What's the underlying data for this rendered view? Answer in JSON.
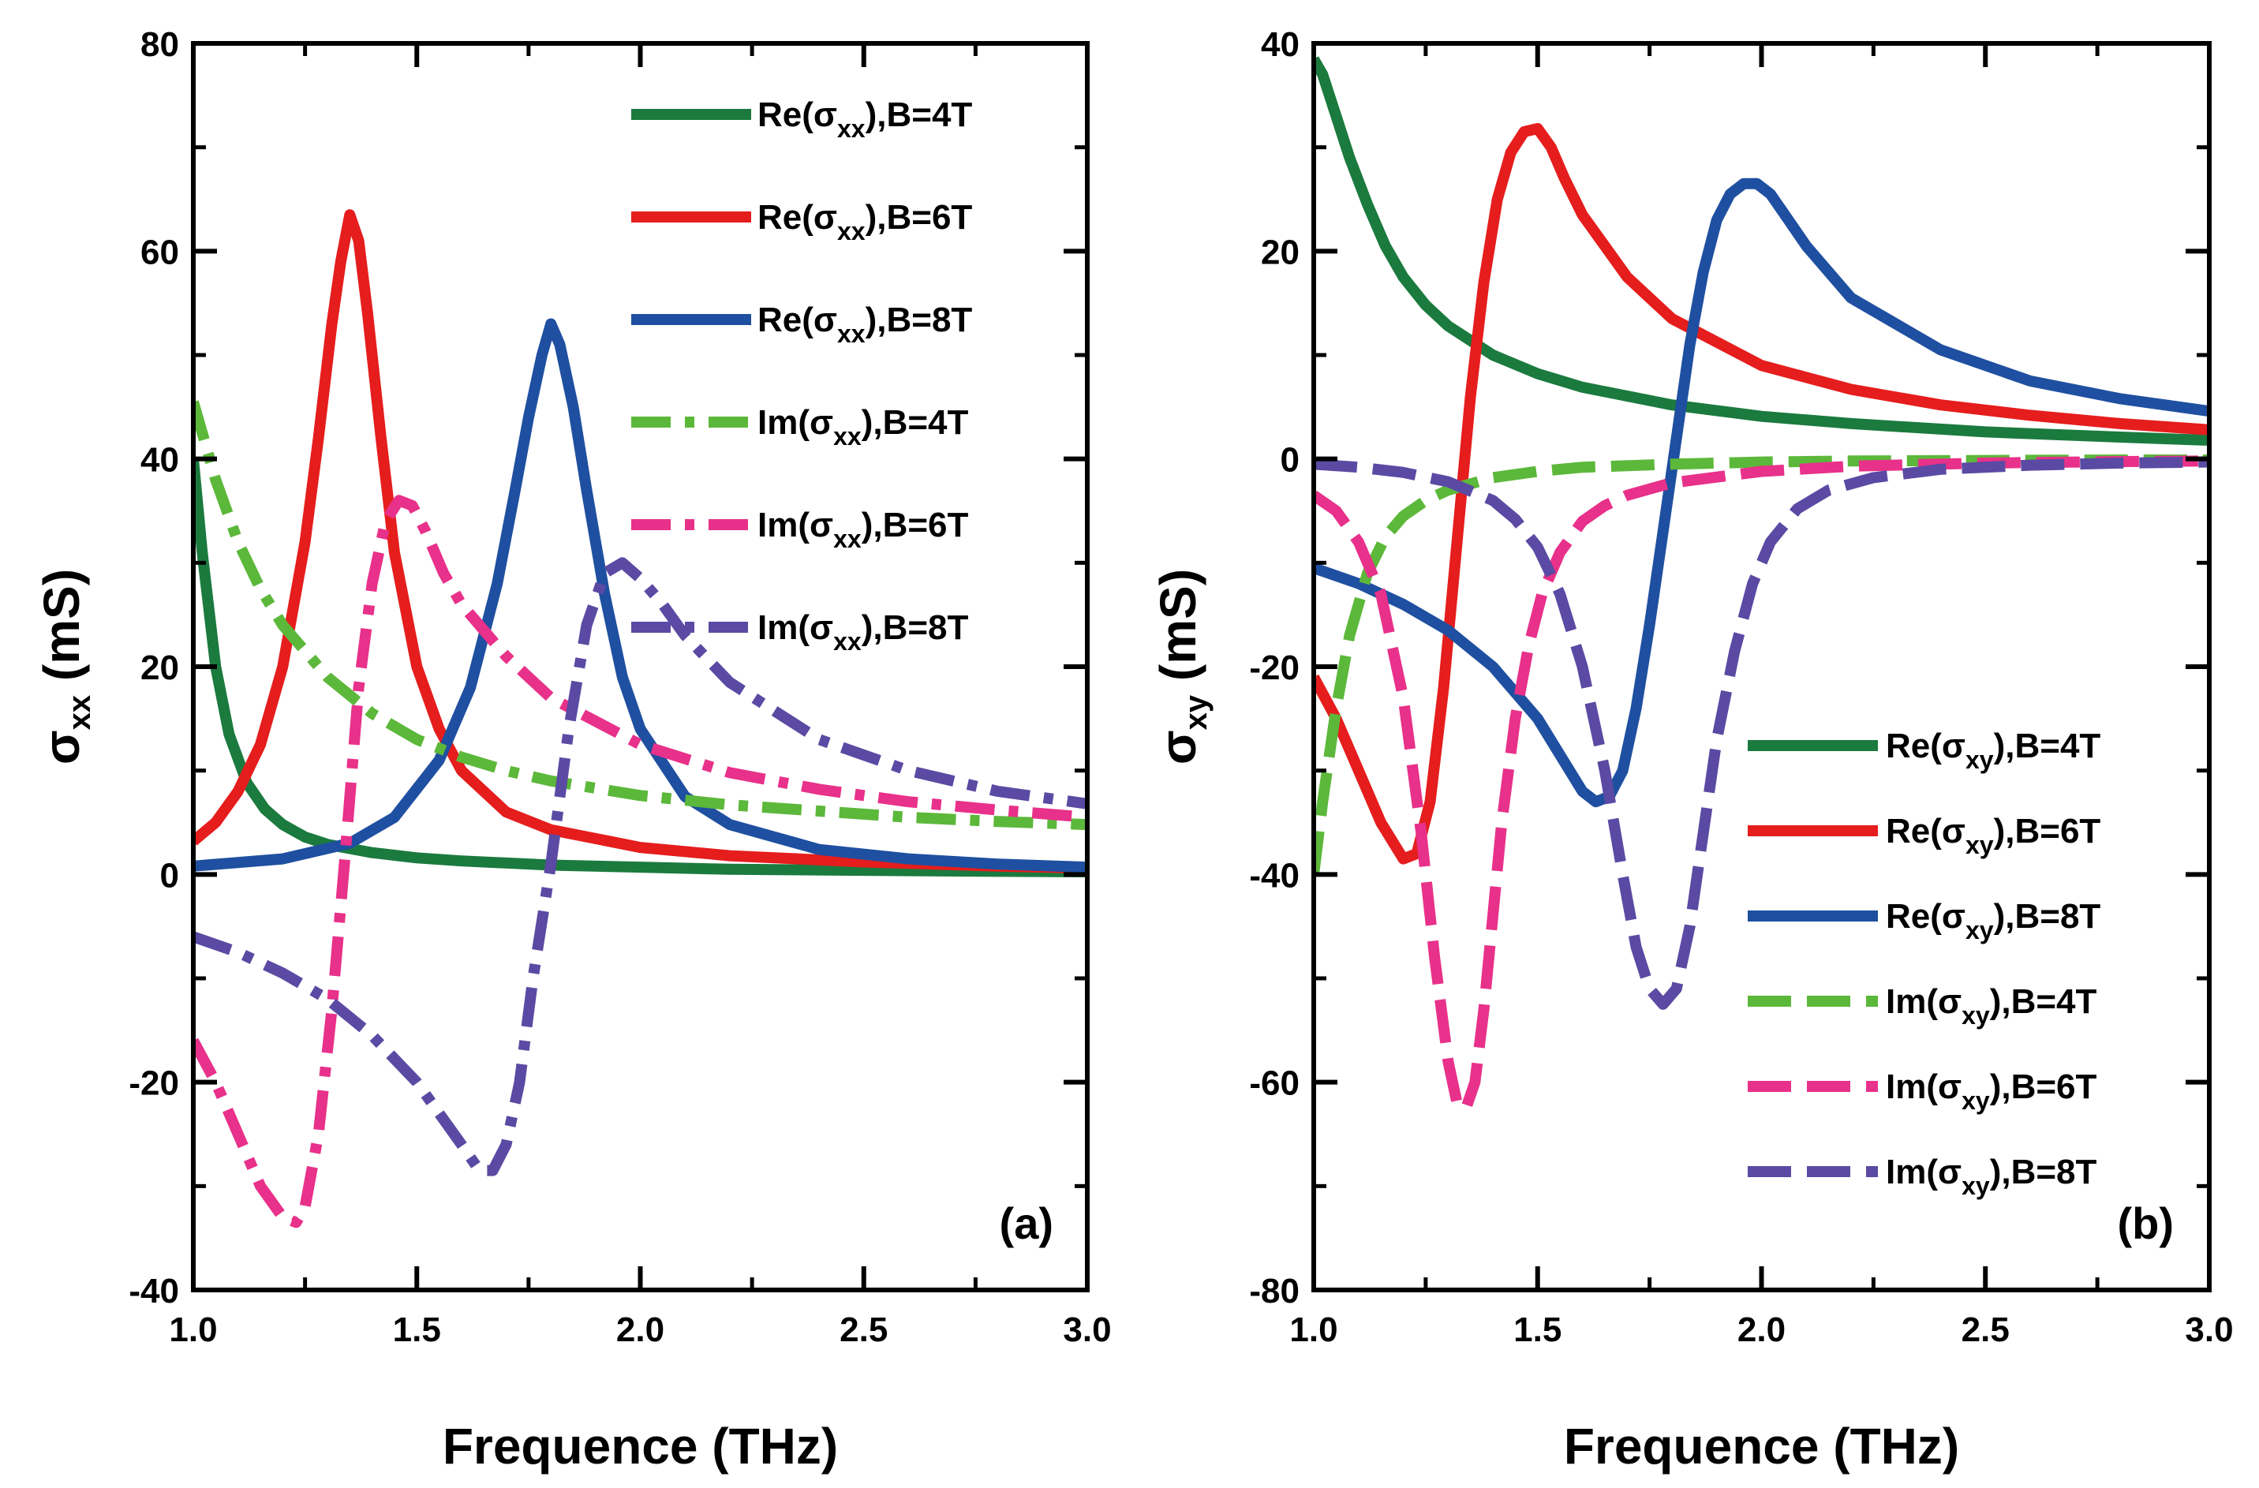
{
  "chart_data": [
    {
      "type": "line",
      "panel_label": "(a)",
      "xlabel": "Frequence (THz)",
      "ylabel_main": "σ",
      "ylabel_sub": "xx",
      "ylabel_unit": "(mS)",
      "xlim": [
        1.0,
        3.0
      ],
      "ylim": [
        -40,
        80
      ],
      "xticks": [
        1.0,
        1.5,
        2.0,
        2.5,
        3.0
      ],
      "xtick_labels": [
        "1.0",
        "1.5",
        "2.0",
        "2.5",
        "3.0"
      ],
      "yticks": [
        -40,
        -20,
        0,
        20,
        40,
        60,
        80
      ],
      "ytick_labels": [
        "-40",
        "-20",
        "0",
        "20",
        "40",
        "60",
        "80"
      ],
      "legend_position": "top-right",
      "series": [
        {
          "name": "Re(σxx),B=4T",
          "legend_pre": "Re(σ",
          "legend_sub": "xx",
          "legend_post": "),B=4T",
          "color": "#1b7a3e",
          "dash": "solid",
          "x": [
            1.0,
            1.02,
            1.05,
            1.08,
            1.12,
            1.16,
            1.2,
            1.25,
            1.3,
            1.4,
            1.5,
            1.6,
            1.8,
            2.0,
            2.2,
            2.5,
            2.8,
            3.0
          ],
          "y": [
            40,
            31,
            20,
            13.5,
            8.8,
            6.3,
            4.8,
            3.6,
            2.9,
            2.1,
            1.6,
            1.3,
            0.9,
            0.7,
            0.5,
            0.4,
            0.3,
            0.25
          ]
        },
        {
          "name": "Re(σxx),B=6T",
          "legend_pre": "Re(σ",
          "legend_sub": "xx",
          "legend_post": "),B=6T",
          "color": "#e51d1d",
          "dash": "solid",
          "x": [
            1.0,
            1.05,
            1.1,
            1.15,
            1.2,
            1.25,
            1.28,
            1.31,
            1.33,
            1.35,
            1.37,
            1.39,
            1.42,
            1.45,
            1.5,
            1.55,
            1.6,
            1.7,
            1.8,
            2.0,
            2.2,
            2.5,
            2.8,
            3.0
          ],
          "y": [
            3.2,
            5,
            8,
            12.5,
            20,
            32,
            42,
            53,
            59,
            63.5,
            61,
            54,
            42,
            31,
            20,
            14,
            10,
            6,
            4.3,
            2.6,
            1.8,
            1.2,
            0.8,
            0.6
          ]
        },
        {
          "name": "Re(σxx),B=8T",
          "legend_pre": "Re(σ",
          "legend_sub": "xx",
          "legend_post": "),B=8T",
          "color": "#1f4fa0",
          "dash": "solid",
          "x": [
            1.0,
            1.2,
            1.35,
            1.45,
            1.55,
            1.62,
            1.68,
            1.72,
            1.75,
            1.78,
            1.8,
            1.82,
            1.85,
            1.88,
            1.92,
            1.96,
            2.0,
            2.1,
            2.2,
            2.4,
            2.6,
            2.8,
            3.0
          ],
          "y": [
            0.8,
            1.5,
            3,
            5.5,
            11,
            18,
            28,
            37,
            44,
            50,
            53,
            51,
            45,
            37,
            27,
            19,
            14,
            7.5,
            4.8,
            2.4,
            1.5,
            1,
            0.7
          ]
        },
        {
          "name": "Im(σxx),B=4T",
          "legend_pre": "Im(σ",
          "legend_sub": "xx",
          "legend_post": "),B=4T",
          "color": "#5cb83a",
          "dash": "dashdot",
          "x": [
            1.0,
            1.05,
            1.1,
            1.15,
            1.2,
            1.3,
            1.4,
            1.5,
            1.6,
            1.7,
            1.8,
            2.0,
            2.2,
            2.4,
            2.6,
            2.8,
            3.0
          ],
          "y": [
            45.5,
            38,
            32,
            27.5,
            24,
            19,
            15.5,
            13,
            11.3,
            10,
            9,
            7.6,
            6.7,
            6.1,
            5.5,
            5.1,
            4.8
          ]
        },
        {
          "name": "Im(σxx),B=6T",
          "legend_pre": "Im(σ",
          "legend_sub": "xx",
          "legend_post": "),B=6T",
          "color": "#e8318a",
          "dash": "dashdot",
          "x": [
            1.0,
            1.05,
            1.1,
            1.15,
            1.2,
            1.23,
            1.25,
            1.28,
            1.31,
            1.34,
            1.37,
            1.4,
            1.43,
            1.46,
            1.49,
            1.52,
            1.56,
            1.6,
            1.7,
            1.8,
            2.0,
            2.2,
            2.4,
            2.6,
            2.8,
            3.0
          ],
          "y": [
            -16,
            -20,
            -25,
            -30,
            -33,
            -33.5,
            -32,
            -25,
            -13,
            2,
            18,
            28,
            34,
            36,
            35.5,
            33,
            29,
            26,
            21,
            17,
            12.5,
            9.8,
            8.2,
            7,
            6.2,
            5.5
          ]
        },
        {
          "name": "Im(σxx),B=8T",
          "legend_pre": "Im(σ",
          "legend_sub": "xx",
          "legend_post": "),B=8T",
          "color": "#5b4aa3",
          "dash": "dashdot",
          "x": [
            1.0,
            1.1,
            1.2,
            1.3,
            1.4,
            1.5,
            1.55,
            1.6,
            1.64,
            1.67,
            1.7,
            1.73,
            1.76,
            1.8,
            1.84,
            1.88,
            1.92,
            1.96,
            2.0,
            2.05,
            2.1,
            2.2,
            2.4,
            2.6,
            2.8,
            3.0
          ],
          "y": [
            -6,
            -7.5,
            -9.5,
            -12,
            -15.5,
            -20,
            -23,
            -26,
            -28.5,
            -28.5,
            -26,
            -20,
            -10,
            1,
            14,
            24,
            29,
            30,
            28.5,
            26,
            23,
            18.5,
            13,
            10,
            8,
            6.8
          ]
        }
      ]
    },
    {
      "type": "line",
      "panel_label": "(b)",
      "xlabel": "Frequence (THz)",
      "ylabel_main": "σ",
      "ylabel_sub": "xy",
      "ylabel_unit": "(mS)",
      "xlim": [
        1.0,
        3.0
      ],
      "ylim": [
        -80,
        40
      ],
      "xticks": [
        1.0,
        1.5,
        2.0,
        2.5,
        3.0
      ],
      "xtick_labels": [
        "1.0",
        "1.5",
        "2.0",
        "2.5",
        "3.0"
      ],
      "yticks": [
        -80,
        -60,
        -40,
        -20,
        0,
        20,
        40
      ],
      "ytick_labels": [
        "-80",
        "-60",
        "-40",
        "-20",
        "0",
        "20",
        "40"
      ],
      "legend_position": "bottom-right",
      "series": [
        {
          "name": "Re(σxy),B=4T",
          "legend_pre": "Re(σ",
          "legend_sub": "xy",
          "legend_post": "),B=4T",
          "color": "#1b7a3e",
          "dash": "solid",
          "x": [
            1.0,
            1.02,
            1.05,
            1.08,
            1.12,
            1.16,
            1.2,
            1.25,
            1.3,
            1.4,
            1.5,
            1.6,
            1.8,
            2.0,
            2.2,
            2.5,
            2.8,
            3.0
          ],
          "y": [
            38.5,
            37,
            33,
            29,
            24.5,
            20.5,
            17.5,
            14.8,
            12.8,
            10,
            8.2,
            6.9,
            5.2,
            4.1,
            3.4,
            2.6,
            2.1,
            1.8
          ]
        },
        {
          "name": "Re(σxy),B=6T",
          "legend_pre": "Re(σ",
          "legend_sub": "xy",
          "legend_post": "),B=6T",
          "color": "#e51d1d",
          "dash": "solid",
          "x": [
            1.0,
            1.05,
            1.1,
            1.15,
            1.2,
            1.23,
            1.26,
            1.29,
            1.32,
            1.35,
            1.38,
            1.41,
            1.44,
            1.47,
            1.5,
            1.53,
            1.56,
            1.6,
            1.7,
            1.8,
            2.0,
            2.2,
            2.4,
            2.6,
            2.8,
            3.0
          ],
          "y": [
            -21,
            -25,
            -30,
            -35,
            -38.5,
            -38,
            -33,
            -22,
            -8,
            6,
            17,
            25,
            29.5,
            31.5,
            31.8,
            30,
            27,
            23.5,
            17.5,
            13.5,
            9,
            6.7,
            5.2,
            4.2,
            3.4,
            2.8
          ]
        },
        {
          "name": "Re(σxy),B=8T",
          "legend_pre": "Re(σ",
          "legend_sub": "xy",
          "legend_post": "),B=8T",
          "color": "#1f4fa0",
          "dash": "solid",
          "x": [
            1.0,
            1.1,
            1.2,
            1.3,
            1.4,
            1.5,
            1.55,
            1.6,
            1.63,
            1.66,
            1.69,
            1.72,
            1.75,
            1.78,
            1.81,
            1.84,
            1.87,
            1.9,
            1.93,
            1.96,
            1.99,
            2.02,
            2.06,
            2.1,
            2.2,
            2.4,
            2.6,
            2.8,
            3.0
          ],
          "y": [
            -10.5,
            -12,
            -14,
            -16.5,
            -20,
            -25,
            -28.5,
            -32,
            -33,
            -32.5,
            -30,
            -24,
            -16,
            -7,
            2,
            11,
            18,
            23,
            25.5,
            26.5,
            26.5,
            25.5,
            23,
            20.5,
            15.5,
            10.5,
            7.5,
            5.8,
            4.6
          ]
        },
        {
          "name": "Im(σxy),B=4T",
          "legend_pre": "Im(σ",
          "legend_sub": "xy",
          "legend_post": "),B=4T",
          "color": "#5cb83a",
          "dash": "dashed",
          "x": [
            1.0,
            1.02,
            1.05,
            1.08,
            1.12,
            1.16,
            1.2,
            1.25,
            1.3,
            1.4,
            1.5,
            1.6,
            1.8,
            2.0,
            2.2,
            2.5,
            2.8,
            3.0
          ],
          "y": [
            -40,
            -33,
            -24,
            -17,
            -11,
            -7.5,
            -5.5,
            -4,
            -3,
            -1.8,
            -1.2,
            -0.8,
            -0.5,
            -0.3,
            -0.2,
            -0.15,
            -0.1,
            -0.1
          ]
        },
        {
          "name": "Im(σxy),B=6T",
          "legend_pre": "Im(σ",
          "legend_sub": "xy",
          "legend_post": "),B=6T",
          "color": "#e8318a",
          "dash": "dashed",
          "x": [
            1.0,
            1.05,
            1.1,
            1.15,
            1.2,
            1.24,
            1.27,
            1.3,
            1.32,
            1.34,
            1.36,
            1.38,
            1.4,
            1.42,
            1.45,
            1.48,
            1.51,
            1.55,
            1.6,
            1.65,
            1.7,
            1.8,
            2.0,
            2.2,
            2.5,
            2.8,
            3.0
          ],
          "y": [
            -3.5,
            -5,
            -8,
            -13,
            -23,
            -36,
            -48,
            -58,
            -62,
            -62.5,
            -60,
            -53,
            -44,
            -35,
            -25,
            -18,
            -13,
            -9,
            -6,
            -4.5,
            -3.5,
            -2.3,
            -1.2,
            -0.7,
            -0.4,
            -0.25,
            -0.2
          ]
        },
        {
          "name": "Im(σxy),B=8T",
          "legend_pre": "Im(σ",
          "legend_sub": "xy",
          "legend_post": "),B=8T",
          "color": "#5b4aa3",
          "dash": "dashed",
          "x": [
            1.0,
            1.1,
            1.2,
            1.3,
            1.4,
            1.45,
            1.5,
            1.55,
            1.6,
            1.65,
            1.69,
            1.72,
            1.75,
            1.78,
            1.81,
            1.84,
            1.87,
            1.9,
            1.94,
            1.98,
            2.02,
            2.08,
            2.15,
            2.25,
            2.4,
            2.6,
            2.8,
            3.0
          ],
          "y": [
            -0.5,
            -0.8,
            -1.3,
            -2.2,
            -4,
            -5.8,
            -8.5,
            -13,
            -20,
            -30,
            -40,
            -47,
            -51,
            -52.5,
            -51,
            -45,
            -36,
            -27,
            -18.5,
            -12,
            -8,
            -4.8,
            -3,
            -1.8,
            -1,
            -0.6,
            -0.4,
            -0.3
          ]
        }
      ]
    }
  ]
}
